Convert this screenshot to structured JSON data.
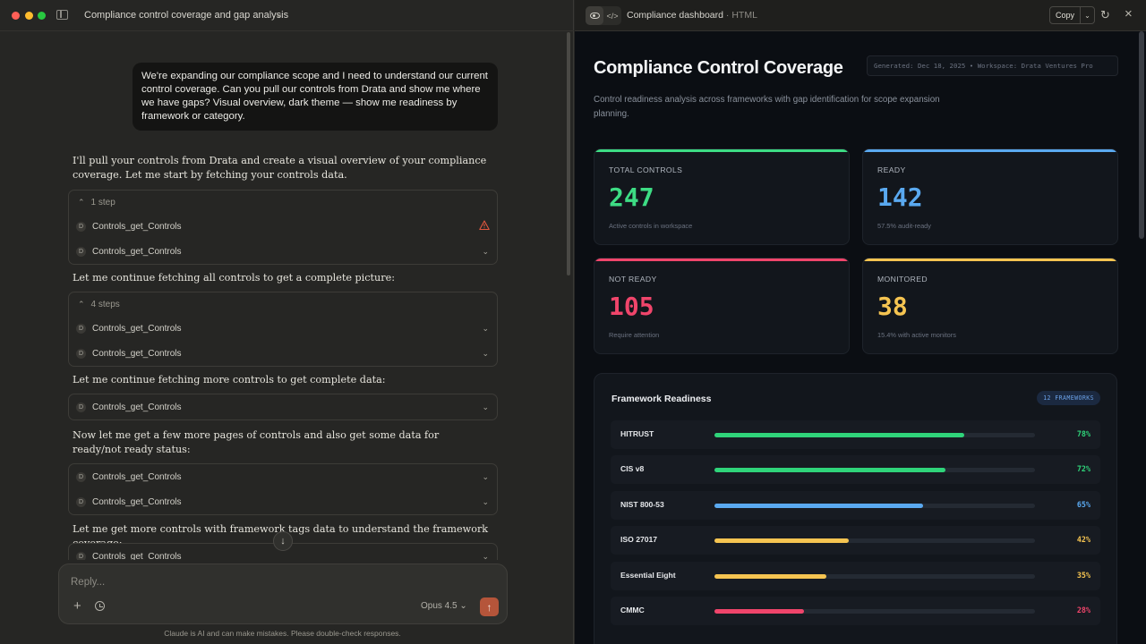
{
  "window": {
    "conversation_title": "Compliance control coverage and gap analysis"
  },
  "chat": {
    "user_message": "We're expanding our compliance scope and I need to understand our current control coverage. Can you pull our controls from Drata and show me where we have gaps? Visual overview, dark theme — show me readiness by framework or category.",
    "assistant_1": "I'll pull your controls from Drata and create a visual overview of your compliance coverage. Let me start by fetching your controls data.",
    "tool_group_1": {
      "steps_label": "1 step",
      "rows": [
        "Controls_get_Controls",
        "Controls_get_Controls"
      ]
    },
    "assistant_2": "Let me continue fetching all controls to get a complete picture:",
    "tool_group_2": {
      "steps_label": "4 steps",
      "rows": [
        "Controls_get_Controls",
        "Controls_get_Controls"
      ]
    },
    "assistant_3": "Let me continue fetching more controls to get complete data:",
    "tool_group_3": {
      "rows": [
        "Controls_get_Controls"
      ]
    },
    "assistant_4": "Now let me get a few more pages of controls and also get some data for ready/not ready status:",
    "tool_group_4": {
      "rows": [
        "Controls_get_Controls",
        "Controls_get_Controls"
      ]
    },
    "assistant_5": "Let me get more controls with framework tags data to understand the framework coverage:",
    "tool_group_5": {
      "rows": [
        "Controls_get_Controls"
      ]
    },
    "tool_badge_letter": "D"
  },
  "composer": {
    "placeholder": "Reply...",
    "model": "Opus 4.5",
    "disclaimer": "Claude is AI and can make mistakes. Please double-check responses."
  },
  "artifact": {
    "title": "Compliance dashboard",
    "type": "HTML",
    "copy_label": "Copy"
  },
  "dashboard": {
    "title": "Compliance Control Coverage",
    "generated": "Generated: Dec 18, 2025 • Workspace: Drata Ventures Pro",
    "subtitle": "Control readiness analysis across frameworks with gap identification for scope expansion planning.",
    "stats": [
      {
        "label": "Total Controls",
        "value": "247",
        "note": "Active controls in workspace",
        "color": "#3ddc84"
      },
      {
        "label": "Ready",
        "value": "142",
        "note": "57.5% audit-ready",
        "color": "#5aa9f0"
      },
      {
        "label": "Not Ready",
        "value": "105",
        "note": "Require attention",
        "color": "#f0456b"
      },
      {
        "label": "Monitored",
        "value": "38",
        "note": "15.4% with active monitors",
        "color": "#f5c451"
      }
    ],
    "framework_title": "Framework Readiness",
    "framework_badge": "12 FRAMEWORKS",
    "frameworks": [
      {
        "name": "HITRUST",
        "percent": 78,
        "label": "78%",
        "color": "#2fd47a"
      },
      {
        "name": "CIS v8",
        "percent": 72,
        "label": "72%",
        "color": "#2fd47a"
      },
      {
        "name": "NIST 800-53",
        "percent": 65,
        "label": "65%",
        "color": "#5aa9f0"
      },
      {
        "name": "ISO 27017",
        "percent": 42,
        "label": "42%",
        "color": "#f5c451"
      },
      {
        "name": "Essential Eight",
        "percent": 35,
        "label": "35%",
        "color": "#f5c451"
      },
      {
        "name": "CMMC",
        "percent": 28,
        "label": "28%",
        "color": "#f0456b"
      }
    ]
  }
}
